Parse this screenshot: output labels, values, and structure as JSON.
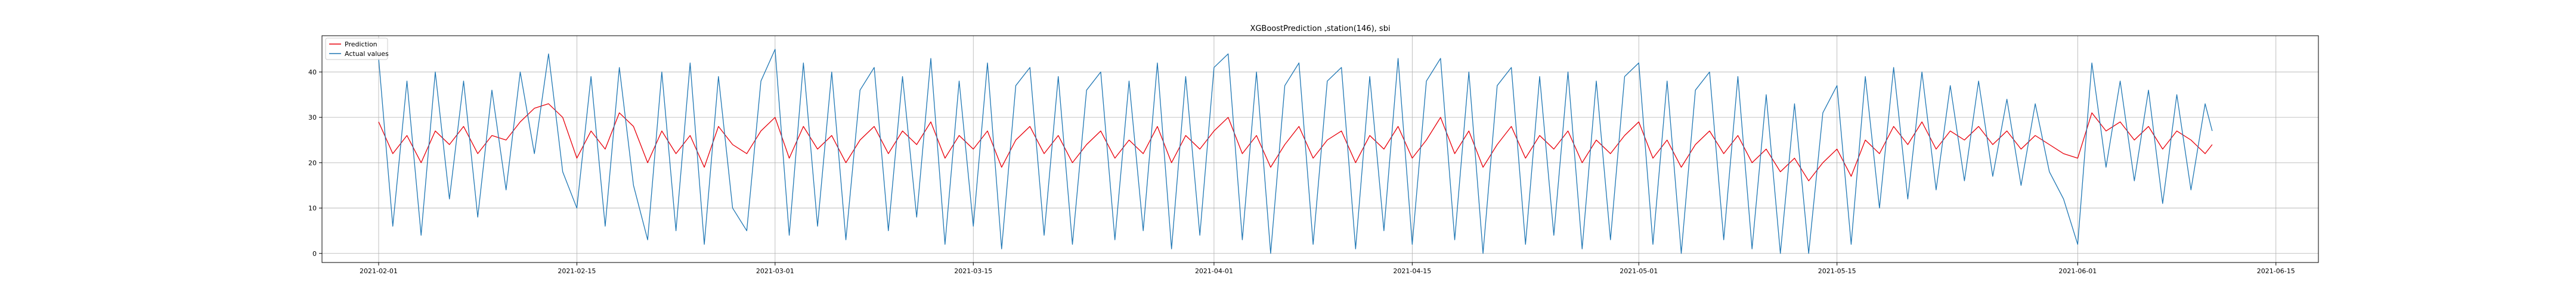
{
  "chart_data": {
    "type": "line",
    "title": "XGBoostPrediction ,station(146), sbi",
    "xlabel": "",
    "ylabel": "",
    "x_range": [
      "2021-01-28",
      "2021-06-18"
    ],
    "x_ticks": [
      "2021-02-01",
      "2021-02-15",
      "2021-03-01",
      "2021-03-15",
      "2021-04-01",
      "2021-04-15",
      "2021-05-01",
      "2021-05-15",
      "2021-06-01",
      "2021-06-15"
    ],
    "ylim": [
      -2,
      48
    ],
    "y_ticks": [
      0,
      10,
      20,
      30,
      40
    ],
    "grid": true,
    "legend_position": "upper-left",
    "data_start": "2021-02-01",
    "data_end": "2021-06-10T12:00",
    "series": [
      {
        "name": "Prediction",
        "color": "#e8000b",
        "linewidth": 1.3,
        "points": [
          [
            "2021-02-01T00:00",
            29
          ],
          [
            "2021-02-02T00:00",
            22
          ],
          [
            "2021-02-03T00:00",
            26
          ],
          [
            "2021-02-04T00:00",
            20
          ],
          [
            "2021-02-05T00:00",
            27
          ],
          [
            "2021-02-06T00:00",
            24
          ],
          [
            "2021-02-07T00:00",
            28
          ],
          [
            "2021-02-08T00:00",
            22
          ],
          [
            "2021-02-09T00:00",
            26
          ],
          [
            "2021-02-10T00:00",
            25
          ],
          [
            "2021-02-11T00:00",
            29
          ],
          [
            "2021-02-12T00:00",
            32
          ],
          [
            "2021-02-13T00:00",
            33
          ],
          [
            "2021-02-14T00:00",
            30
          ],
          [
            "2021-02-15T00:00",
            21
          ],
          [
            "2021-02-16T00:00",
            27
          ],
          [
            "2021-02-17T00:00",
            23
          ],
          [
            "2021-02-18T00:00",
            31
          ],
          [
            "2021-02-19T00:00",
            28
          ],
          [
            "2021-02-20T00:00",
            20
          ],
          [
            "2021-02-21T00:00",
            27
          ],
          [
            "2021-02-22T00:00",
            22
          ],
          [
            "2021-02-23T00:00",
            26
          ],
          [
            "2021-02-24T00:00",
            19
          ],
          [
            "2021-02-25T00:00",
            28
          ],
          [
            "2021-02-26T00:00",
            24
          ],
          [
            "2021-02-27T00:00",
            22
          ],
          [
            "2021-02-28T00:00",
            27
          ],
          [
            "2021-03-01T00:00",
            30
          ],
          [
            "2021-03-02T00:00",
            21
          ],
          [
            "2021-03-03T00:00",
            28
          ],
          [
            "2021-03-04T00:00",
            23
          ],
          [
            "2021-03-05T00:00",
            26
          ],
          [
            "2021-03-06T00:00",
            20
          ],
          [
            "2021-03-07T00:00",
            25
          ],
          [
            "2021-03-08T00:00",
            28
          ],
          [
            "2021-03-09T00:00",
            22
          ],
          [
            "2021-03-10T00:00",
            27
          ],
          [
            "2021-03-11T00:00",
            24
          ],
          [
            "2021-03-12T00:00",
            29
          ],
          [
            "2021-03-13T00:00",
            21
          ],
          [
            "2021-03-14T00:00",
            26
          ],
          [
            "2021-03-15T00:00",
            23
          ],
          [
            "2021-03-16T00:00",
            27
          ],
          [
            "2021-03-17T00:00",
            19
          ],
          [
            "2021-03-18T00:00",
            25
          ],
          [
            "2021-03-19T00:00",
            28
          ],
          [
            "2021-03-20T00:00",
            22
          ],
          [
            "2021-03-21T00:00",
            26
          ],
          [
            "2021-03-22T00:00",
            20
          ],
          [
            "2021-03-23T00:00",
            24
          ],
          [
            "2021-03-24T00:00",
            27
          ],
          [
            "2021-03-25T00:00",
            21
          ],
          [
            "2021-03-26T00:00",
            25
          ],
          [
            "2021-03-27T00:00",
            22
          ],
          [
            "2021-03-28T00:00",
            28
          ],
          [
            "2021-03-29T00:00",
            20
          ],
          [
            "2021-03-30T00:00",
            26
          ],
          [
            "2021-03-31T00:00",
            23
          ],
          [
            "2021-04-01T00:00",
            27
          ],
          [
            "2021-04-02T00:00",
            30
          ],
          [
            "2021-04-03T00:00",
            22
          ],
          [
            "2021-04-04T00:00",
            26
          ],
          [
            "2021-04-05T00:00",
            19
          ],
          [
            "2021-04-06T00:00",
            24
          ],
          [
            "2021-04-07T00:00",
            28
          ],
          [
            "2021-04-08T00:00",
            21
          ],
          [
            "2021-04-09T00:00",
            25
          ],
          [
            "2021-04-10T00:00",
            27
          ],
          [
            "2021-04-11T00:00",
            20
          ],
          [
            "2021-04-12T00:00",
            26
          ],
          [
            "2021-04-13T00:00",
            23
          ],
          [
            "2021-04-14T00:00",
            28
          ],
          [
            "2021-04-15T00:00",
            21
          ],
          [
            "2021-04-16T00:00",
            25
          ],
          [
            "2021-04-17T00:00",
            30
          ],
          [
            "2021-04-18T00:00",
            22
          ],
          [
            "2021-04-19T00:00",
            27
          ],
          [
            "2021-04-20T00:00",
            19
          ],
          [
            "2021-04-21T00:00",
            24
          ],
          [
            "2021-04-22T00:00",
            28
          ],
          [
            "2021-04-23T00:00",
            21
          ],
          [
            "2021-04-24T00:00",
            26
          ],
          [
            "2021-04-25T00:00",
            23
          ],
          [
            "2021-04-26T00:00",
            27
          ],
          [
            "2021-04-27T00:00",
            20
          ],
          [
            "2021-04-28T00:00",
            25
          ],
          [
            "2021-04-29T00:00",
            22
          ],
          [
            "2021-04-30T00:00",
            26
          ],
          [
            "2021-05-01T00:00",
            29
          ],
          [
            "2021-05-02T00:00",
            21
          ],
          [
            "2021-05-03T00:00",
            25
          ],
          [
            "2021-05-04T00:00",
            19
          ],
          [
            "2021-05-05T00:00",
            24
          ],
          [
            "2021-05-06T00:00",
            27
          ],
          [
            "2021-05-07T00:00",
            22
          ],
          [
            "2021-05-08T00:00",
            26
          ],
          [
            "2021-05-09T00:00",
            20
          ],
          [
            "2021-05-10T00:00",
            23
          ],
          [
            "2021-05-11T00:00",
            18
          ],
          [
            "2021-05-12T00:00",
            21
          ],
          [
            "2021-05-13T00:00",
            16
          ],
          [
            "2021-05-14T00:00",
            20
          ],
          [
            "2021-05-15T00:00",
            23
          ],
          [
            "2021-05-16T00:00",
            17
          ],
          [
            "2021-05-17T00:00",
            25
          ],
          [
            "2021-05-18T00:00",
            22
          ],
          [
            "2021-05-19T00:00",
            28
          ],
          [
            "2021-05-20T00:00",
            24
          ],
          [
            "2021-05-21T00:00",
            29
          ],
          [
            "2021-05-22T00:00",
            23
          ],
          [
            "2021-05-23T00:00",
            27
          ],
          [
            "2021-05-24T00:00",
            25
          ],
          [
            "2021-05-25T00:00",
            28
          ],
          [
            "2021-05-26T00:00",
            24
          ],
          [
            "2021-05-27T00:00",
            27
          ],
          [
            "2021-05-28T00:00",
            23
          ],
          [
            "2021-05-29T00:00",
            26
          ],
          [
            "2021-05-30T00:00",
            24
          ],
          [
            "2021-05-31T00:00",
            22
          ],
          [
            "2021-06-01T00:00",
            21
          ],
          [
            "2021-06-02T00:00",
            31
          ],
          [
            "2021-06-03T00:00",
            27
          ],
          [
            "2021-06-04T00:00",
            29
          ],
          [
            "2021-06-05T00:00",
            25
          ],
          [
            "2021-06-06T00:00",
            28
          ],
          [
            "2021-06-07T00:00",
            23
          ],
          [
            "2021-06-08T00:00",
            27
          ],
          [
            "2021-06-09T00:00",
            25
          ],
          [
            "2021-06-10T00:00",
            22
          ],
          [
            "2021-06-10T12:00",
            24
          ]
        ]
      },
      {
        "name": "Actual values",
        "color": "#1f77b4",
        "linewidth": 1.3,
        "points": [
          [
            "2021-02-01T00:00",
            43
          ],
          [
            "2021-02-02T00:00",
            6
          ],
          [
            "2021-02-03T00:00",
            38
          ],
          [
            "2021-02-04T00:00",
            4
          ],
          [
            "2021-02-05T00:00",
            40
          ],
          [
            "2021-02-06T00:00",
            12
          ],
          [
            "2021-02-07T00:00",
            38
          ],
          [
            "2021-02-08T00:00",
            8
          ],
          [
            "2021-02-09T00:00",
            36
          ],
          [
            "2021-02-10T00:00",
            14
          ],
          [
            "2021-02-11T00:00",
            40
          ],
          [
            "2021-02-12T00:00",
            22
          ],
          [
            "2021-02-13T00:00",
            44
          ],
          [
            "2021-02-14T00:00",
            18
          ],
          [
            "2021-02-15T00:00",
            10
          ],
          [
            "2021-02-16T00:00",
            39
          ],
          [
            "2021-02-17T00:00",
            6
          ],
          [
            "2021-02-18T00:00",
            41
          ],
          [
            "2021-02-19T00:00",
            15
          ],
          [
            "2021-02-20T00:00",
            3
          ],
          [
            "2021-02-21T00:00",
            40
          ],
          [
            "2021-02-22T00:00",
            5
          ],
          [
            "2021-02-23T00:00",
            42
          ],
          [
            "2021-02-24T00:00",
            2
          ],
          [
            "2021-02-25T00:00",
            39
          ],
          [
            "2021-02-26T00:00",
            10
          ],
          [
            "2021-02-27T00:00",
            5
          ],
          [
            "2021-02-28T00:00",
            38
          ],
          [
            "2021-03-01T00:00",
            45
          ],
          [
            "2021-03-02T00:00",
            4
          ],
          [
            "2021-03-03T00:00",
            42
          ],
          [
            "2021-03-04T00:00",
            6
          ],
          [
            "2021-03-05T00:00",
            40
          ],
          [
            "2021-03-06T00:00",
            3
          ],
          [
            "2021-03-07T00:00",
            36
          ],
          [
            "2021-03-08T00:00",
            41
          ],
          [
            "2021-03-09T00:00",
            5
          ],
          [
            "2021-03-10T00:00",
            39
          ],
          [
            "2021-03-11T00:00",
            8
          ],
          [
            "2021-03-12T00:00",
            43
          ],
          [
            "2021-03-13T00:00",
            2
          ],
          [
            "2021-03-14T00:00",
            38
          ],
          [
            "2021-03-15T00:00",
            6
          ],
          [
            "2021-03-16T00:00",
            42
          ],
          [
            "2021-03-17T00:00",
            1
          ],
          [
            "2021-03-18T00:00",
            37
          ],
          [
            "2021-03-19T00:00",
            41
          ],
          [
            "2021-03-20T00:00",
            4
          ],
          [
            "2021-03-21T00:00",
            39
          ],
          [
            "2021-03-22T00:00",
            2
          ],
          [
            "2021-03-23T00:00",
            36
          ],
          [
            "2021-03-24T00:00",
            40
          ],
          [
            "2021-03-25T00:00",
            3
          ],
          [
            "2021-03-26T00:00",
            38
          ],
          [
            "2021-03-27T00:00",
            5
          ],
          [
            "2021-03-28T00:00",
            42
          ],
          [
            "2021-03-29T00:00",
            1
          ],
          [
            "2021-03-30T00:00",
            39
          ],
          [
            "2021-03-31T00:00",
            4
          ],
          [
            "2021-04-01T00:00",
            41
          ],
          [
            "2021-04-02T00:00",
            44
          ],
          [
            "2021-04-03T00:00",
            3
          ],
          [
            "2021-04-04T00:00",
            40
          ],
          [
            "2021-04-05T00:00",
            0
          ],
          [
            "2021-04-06T00:00",
            37
          ],
          [
            "2021-04-07T00:00",
            42
          ],
          [
            "2021-04-08T00:00",
            2
          ],
          [
            "2021-04-09T00:00",
            38
          ],
          [
            "2021-04-10T00:00",
            41
          ],
          [
            "2021-04-11T00:00",
            1
          ],
          [
            "2021-04-12T00:00",
            39
          ],
          [
            "2021-04-13T00:00",
            5
          ],
          [
            "2021-04-14T00:00",
            43
          ],
          [
            "2021-04-15T00:00",
            2
          ],
          [
            "2021-04-16T00:00",
            38
          ],
          [
            "2021-04-17T00:00",
            43
          ],
          [
            "2021-04-18T00:00",
            3
          ],
          [
            "2021-04-19T00:00",
            40
          ],
          [
            "2021-04-20T00:00",
            0
          ],
          [
            "2021-04-21T00:00",
            37
          ],
          [
            "2021-04-22T00:00",
            41
          ],
          [
            "2021-04-23T00:00",
            2
          ],
          [
            "2021-04-24T00:00",
            39
          ],
          [
            "2021-04-25T00:00",
            4
          ],
          [
            "2021-04-26T00:00",
            40
          ],
          [
            "2021-04-27T00:00",
            1
          ],
          [
            "2021-04-28T00:00",
            38
          ],
          [
            "2021-04-29T00:00",
            3
          ],
          [
            "2021-04-30T00:00",
            39
          ],
          [
            "2021-05-01T00:00",
            42
          ],
          [
            "2021-05-02T00:00",
            2
          ],
          [
            "2021-05-03T00:00",
            38
          ],
          [
            "2021-05-04T00:00",
            0
          ],
          [
            "2021-05-05T00:00",
            36
          ],
          [
            "2021-05-06T00:00",
            40
          ],
          [
            "2021-05-07T00:00",
            3
          ],
          [
            "2021-05-08T00:00",
            39
          ],
          [
            "2021-05-09T00:00",
            1
          ],
          [
            "2021-05-10T00:00",
            35
          ],
          [
            "2021-05-11T00:00",
            0
          ],
          [
            "2021-05-12T00:00",
            33
          ],
          [
            "2021-05-13T00:00",
            0
          ],
          [
            "2021-05-14T00:00",
            31
          ],
          [
            "2021-05-15T00:00",
            37
          ],
          [
            "2021-05-16T00:00",
            2
          ],
          [
            "2021-05-17T00:00",
            39
          ],
          [
            "2021-05-18T00:00",
            10
          ],
          [
            "2021-05-19T00:00",
            41
          ],
          [
            "2021-05-20T00:00",
            12
          ],
          [
            "2021-05-21T00:00",
            40
          ],
          [
            "2021-05-22T00:00",
            14
          ],
          [
            "2021-05-23T00:00",
            37
          ],
          [
            "2021-05-24T00:00",
            16
          ],
          [
            "2021-05-25T00:00",
            38
          ],
          [
            "2021-05-26T00:00",
            17
          ],
          [
            "2021-05-27T00:00",
            34
          ],
          [
            "2021-05-28T00:00",
            15
          ],
          [
            "2021-05-29T00:00",
            33
          ],
          [
            "2021-05-30T00:00",
            18
          ],
          [
            "2021-05-31T00:00",
            12
          ],
          [
            "2021-06-01T00:00",
            2
          ],
          [
            "2021-06-02T00:00",
            42
          ],
          [
            "2021-06-03T00:00",
            19
          ],
          [
            "2021-06-04T00:00",
            38
          ],
          [
            "2021-06-05T00:00",
            16
          ],
          [
            "2021-06-06T00:00",
            36
          ],
          [
            "2021-06-07T00:00",
            11
          ],
          [
            "2021-06-08T00:00",
            35
          ],
          [
            "2021-06-09T00:00",
            14
          ],
          [
            "2021-06-10T00:00",
            33
          ],
          [
            "2021-06-10T12:00",
            27
          ]
        ]
      }
    ]
  }
}
